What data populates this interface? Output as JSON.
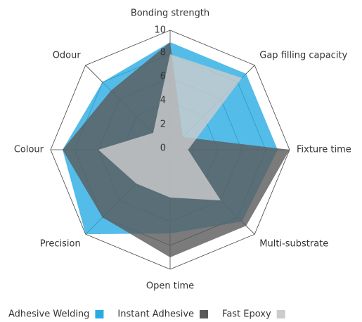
{
  "chart_data": {
    "type": "radar",
    "categories": [
      "Bonding strength",
      "Gap filling capacity",
      "Fixture time",
      "Multi-substrate",
      "Open time",
      "Precision",
      "Colour",
      "Odour"
    ],
    "series": [
      {
        "name": "Adhesive Welding",
        "color": "#29abe2",
        "values": [
          9,
          9,
          9,
          8.5,
          7,
          10,
          9,
          8
        ]
      },
      {
        "name": "Instant Adhesive",
        "color": "#5a5a5a",
        "values": [
          9,
          1.5,
          10,
          9,
          9,
          8,
          9,
          7
        ]
      },
      {
        "name": "Fast Epoxy",
        "color": "#cccccc",
        "values": [
          8,
          8.5,
          1.5,
          6,
          4,
          4,
          6,
          2
        ]
      }
    ],
    "ylim": [
      0,
      10
    ],
    "yticks": [
      0,
      2,
      4,
      6,
      8,
      10
    ],
    "grid": true
  }
}
